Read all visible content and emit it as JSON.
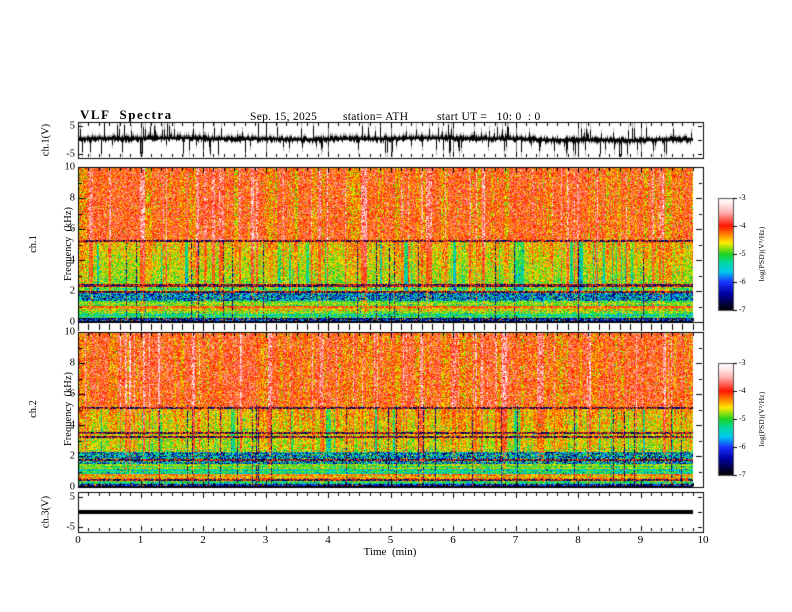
{
  "header": {
    "title": "VLF  Spectra",
    "date": "Sep. 15, 2025",
    "station": "station= ATH",
    "start_ut": "start UT =   10: 0  : 0"
  },
  "xaxis": {
    "label": "Time  (min)",
    "ticks": [
      "0",
      "1",
      "2",
      "3",
      "4",
      "5",
      "6",
      "7",
      "8",
      "9",
      "10"
    ],
    "min": 0,
    "max": 10,
    "minors_per_interval": 5
  },
  "panels": {
    "ch1": {
      "ylabel": "ch.1(V)",
      "yticks": [
        "5",
        "-5"
      ],
      "ytick_vals": [
        5,
        -5
      ]
    },
    "spec1": {
      "ylabel_line1": "ch.1",
      "ylabel_line2": "Frequency  (kHz)",
      "yticks": [
        "0",
        "2",
        "4",
        "6",
        "8",
        "10"
      ],
      "ytick_vals": [
        0,
        2,
        4,
        6,
        8,
        10
      ]
    },
    "spec2": {
      "ylabel_line1": "ch.2",
      "ylabel_line2": "Frequency  (kHz)",
      "yticks": [
        "0",
        "2",
        "4",
        "6",
        "8",
        "10"
      ],
      "ytick_vals": [
        0,
        2,
        4,
        6,
        8,
        10
      ]
    },
    "ch3": {
      "ylabel": "ch.3(V)",
      "yticks": [
        "5",
        "-5"
      ],
      "ytick_vals": [
        5,
        -5
      ]
    }
  },
  "colorbar": {
    "label": "log(PSD)(V²/Hz)",
    "ticks": [
      "-3",
      "-4",
      "-5",
      "-6",
      "-7"
    ],
    "vmin": -7,
    "vmax": -3,
    "stops": [
      [
        0.0,
        "#ffffff"
      ],
      [
        0.05,
        "#ffecec"
      ],
      [
        0.13,
        "#ffb0b0"
      ],
      [
        0.25,
        "#ff1400"
      ],
      [
        0.32,
        "#ff7a00"
      ],
      [
        0.4,
        "#ffec00"
      ],
      [
        0.5,
        "#1fd41f"
      ],
      [
        0.58,
        "#00d9a8"
      ],
      [
        0.66,
        "#00c8f0"
      ],
      [
        0.75,
        "#1a35ff"
      ],
      [
        0.85,
        "#0000a8"
      ],
      [
        0.94,
        "#000042"
      ],
      [
        1.0,
        "#000000"
      ]
    ]
  },
  "chart_data": [
    {
      "type": "line",
      "panel": "ch1",
      "ylabel": "ch.1(V)",
      "ylim": [
        -6.5,
        6.5
      ],
      "yticks": [
        5,
        -5
      ],
      "xlim": [
        0,
        10
      ],
      "data_end_min": 9.84,
      "description": "broadband noisy voltage waveform, mean near +0.3 V, dense impulsive spikes reaching about +5 and -5 V across 0-9.84 min",
      "gen": {
        "seed": 303,
        "baseline": 0.3,
        "spike_prob": 0.22
      }
    },
    {
      "type": "heatmap",
      "panel": "spec1",
      "ylabel": "ch.1 Frequency (kHz)",
      "xlim": [
        0,
        10
      ],
      "ylim": [
        0,
        10
      ],
      "data_end_min": 9.84,
      "colorbar": {
        "label": "log(PSD)(V²/Hz)",
        "ticks": [
          -3,
          -4,
          -5,
          -6,
          -7
        ]
      },
      "description": "VLF spectrogram: intense red/yellow (logPSD -3.5..-4.5) above ~5 kHz with vertical sferic streaks; green (~-4.9) 2.4-5.2 kHz with red and cyan vertical streaks; cyan/blue mottled band 1.35-1.95 kHz; orange line-band near 0.9 kHz; dark blue/black band below 0.25 kHz; dark horizontal lines near 5.25 and 2.35 kHz",
      "gen": {
        "seed": 101,
        "streaks": {
          "strong": 0.14,
          "yellow": 0.3,
          "blue": 0.07,
          "persist": 0.45,
          "darkline": 0.03
        },
        "lines": [
          {
            "f": 5.25
          },
          {
            "f": 2.35
          },
          {
            "f": 1.95
          }
        ],
        "bands": [
          {
            "f0": 5.2,
            "f1": 10.01,
            "base": -4.0,
            "noise": 0.5,
            "kind": "top"
          },
          {
            "f0": 2.4,
            "f1": 5.2,
            "base": -4.85,
            "noise": 0.4,
            "kind": "mid",
            "grad": 0.35
          },
          {
            "f0": 1.95,
            "f1": 2.4,
            "base": -5.05,
            "noise": 0.45,
            "kind": "mid",
            "grad": 0
          },
          {
            "f0": 1.35,
            "f1": 1.95,
            "base": -5.5,
            "noise": 0.5,
            "kind": "dark-speckle"
          },
          {
            "f0": 1.05,
            "f1": 1.35,
            "base": -4.85,
            "noise": 0.35,
            "kind": "plain"
          },
          {
            "f0": 0.82,
            "f1": 1.05,
            "base": -4.3,
            "noise": 0.35,
            "kind": "plain"
          },
          {
            "f0": 0.55,
            "f1": 0.82,
            "base": -4.75,
            "noise": 0.45,
            "kind": "plain"
          },
          {
            "f0": 0.28,
            "f1": 0.55,
            "base": -5.2,
            "noise": 0.45,
            "kind": "plain"
          },
          {
            "f0": 0.0,
            "f1": 0.28,
            "base": -6.2,
            "noise": 0.55,
            "kind": "red-speckle"
          }
        ]
      }
    },
    {
      "type": "heatmap",
      "panel": "spec2",
      "ylabel": "ch.2 Frequency (kHz)",
      "xlim": [
        0,
        10
      ],
      "ylim": [
        0,
        10
      ],
      "data_end_min": 9.84,
      "colorbar": {
        "label": "log(PSD)(V²/Hz)",
        "ticks": [
          -3,
          -4,
          -5,
          -6,
          -7
        ]
      },
      "description": "VLF spectrogram similar to ch.1: red/yellow above ~5 kHz, green mid band 2.25-5.1 kHz, cyan/blue band 1.5-2.25 kHz, orange band near 0.6 kHz, dark band below 0.22 kHz; dark horizontal lines near 5.1, 3.5, 3.2, 1.75 and 0.45 kHz",
      "gen": {
        "seed": 202,
        "streaks": {
          "strong": 0.14,
          "yellow": 0.3,
          "blue": 0.07,
          "persist": 0.45,
          "darkline": 0.03
        },
        "lines": [
          {
            "f": 5.1
          },
          {
            "f": 3.5
          },
          {
            "f": 3.2
          },
          {
            "f": 1.75
          },
          {
            "f": 0.45
          }
        ],
        "bands": [
          {
            "f0": 5.1,
            "f1": 10.01,
            "base": -3.95,
            "noise": 0.5,
            "kind": "top"
          },
          {
            "f0": 2.25,
            "f1": 5.1,
            "base": -4.8,
            "noise": 0.4,
            "kind": "mid",
            "grad": 0.3
          },
          {
            "f0": 1.5,
            "f1": 2.25,
            "base": -5.35,
            "noise": 0.5,
            "kind": "dark-speckle"
          },
          {
            "f0": 1.15,
            "f1": 1.5,
            "base": -4.9,
            "noise": 0.35,
            "kind": "plain"
          },
          {
            "f0": 0.85,
            "f1": 1.15,
            "base": -5.25,
            "noise": 0.4,
            "kind": "plain"
          },
          {
            "f0": 0.5,
            "f1": 0.85,
            "base": -4.45,
            "noise": 0.4,
            "kind": "plain"
          },
          {
            "f0": 0.22,
            "f1": 0.5,
            "base": -5.15,
            "noise": 0.45,
            "kind": "plain"
          },
          {
            "f0": 0.0,
            "f1": 0.22,
            "base": -6.25,
            "noise": 0.5,
            "kind": "red-speckle"
          }
        ]
      }
    },
    {
      "type": "line",
      "panel": "ch3",
      "ylabel": "ch.3(V)",
      "ylim": [
        -6.5,
        6.5
      ],
      "yticks": [
        5,
        -5
      ],
      "xlim": [
        0,
        10
      ],
      "data_end_min": 9.84,
      "value_const": 0,
      "description": "flat thick black trace at 0 V for the whole record"
    }
  ]
}
